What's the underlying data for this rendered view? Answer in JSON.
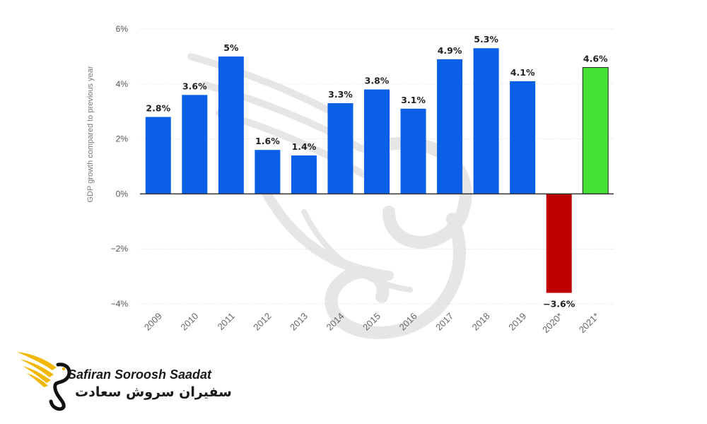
{
  "chart_data": {
    "type": "bar",
    "title": "",
    "xlabel": "",
    "ylabel": "GDP growth compared to previous year",
    "ylim": [
      -4,
      6
    ],
    "yticks": [
      "6%",
      "4%",
      "2%",
      "0%",
      "−2%",
      "−4%"
    ],
    "grid": true,
    "categories": [
      "2009",
      "2010",
      "2011",
      "2012",
      "2013",
      "2014",
      "2015",
      "2016",
      "2017",
      "2018",
      "2019",
      "2020*",
      "2021*"
    ],
    "values": [
      2.8,
      3.6,
      5,
      1.6,
      1.4,
      3.3,
      3.8,
      3.1,
      4.9,
      5.3,
      4.1,
      -3.6,
      4.6
    ],
    "data_labels": [
      "2.8%",
      "3.6%",
      "5%",
      "1.6%",
      "1.4%",
      "3.3%",
      "3.8%",
      "3.1%",
      "4.9%",
      "5.3%",
      "4.1%",
      "−3.6%",
      "4.6%"
    ],
    "colors": {
      "default": "#0b5ee6",
      "negative": "#c00000",
      "forecast": "#44e033",
      "grid": "#d9d9d9",
      "zero_line": "#333333"
    },
    "bar_colors": [
      "default",
      "default",
      "default",
      "default",
      "default",
      "default",
      "default",
      "default",
      "default",
      "default",
      "default",
      "negative",
      "forecast"
    ]
  },
  "branding": {
    "name_latin": "Safiran Soroosh Saadat",
    "name_farsi": "سفیران سروش سعادت",
    "logo_icon": "golden-wing-swan-icon",
    "watermark_icon": "swan-wing-watermark-icon",
    "logo_color": "#f2b705"
  }
}
